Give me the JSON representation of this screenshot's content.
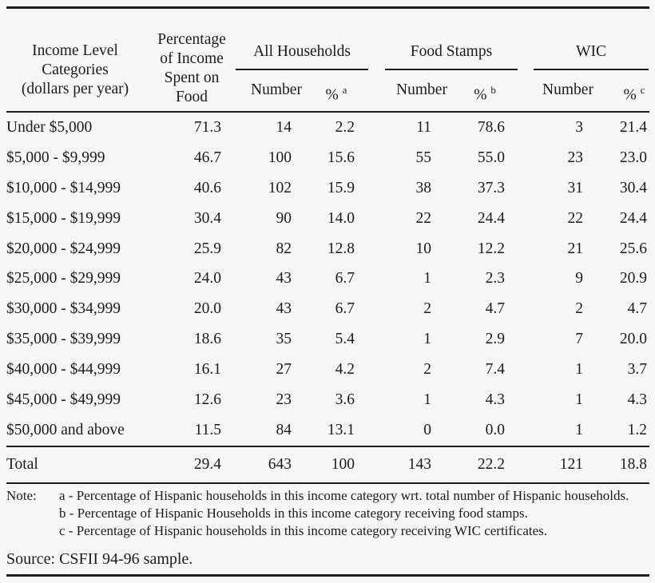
{
  "page": {
    "background": "#f6f6f4",
    "text_color": "#1b1b1b",
    "rule_color": "#1c1c1c"
  },
  "table": {
    "col1_header": [
      "Income Level",
      "Categories",
      "(dollars per year)"
    ],
    "col2_header": [
      "Percentage",
      "of Income",
      "Spent on",
      "Food"
    ],
    "groups": [
      {
        "label": "All Households",
        "sub": [
          {
            "label": "Number"
          },
          {
            "label": "%",
            "sup": "a"
          }
        ]
      },
      {
        "label": "Food Stamps",
        "sub": [
          {
            "label": "Number"
          },
          {
            "label": "%",
            "sup": "b"
          }
        ]
      },
      {
        "label": "WIC",
        "sub": [
          {
            "label": "Number"
          },
          {
            "label": "%",
            "sup": "c"
          }
        ]
      }
    ],
    "rows": [
      {
        "category": "Under $5,000",
        "pct_income_food": "71.3",
        "all_number": "14",
        "all_pct": "2.2",
        "fs_number": "11",
        "fs_pct": "78.6",
        "wic_number": "3",
        "wic_pct": "21.4"
      },
      {
        "category": "$5,000 - $9,999",
        "pct_income_food": "46.7",
        "all_number": "100",
        "all_pct": "15.6",
        "fs_number": "55",
        "fs_pct": "55.0",
        "wic_number": "23",
        "wic_pct": "23.0"
      },
      {
        "category": "$10,000 - $14,999",
        "pct_income_food": "40.6",
        "all_number": "102",
        "all_pct": "15.9",
        "fs_number": "38",
        "fs_pct": "37.3",
        "wic_number": "31",
        "wic_pct": "30.4"
      },
      {
        "category": "$15,000 - $19,999",
        "pct_income_food": "30.4",
        "all_number": "90",
        "all_pct": "14.0",
        "fs_number": "22",
        "fs_pct": "24.4",
        "wic_number": "22",
        "wic_pct": "24.4"
      },
      {
        "category": "$20,000 - $24,999",
        "pct_income_food": "25.9",
        "all_number": "82",
        "all_pct": "12.8",
        "fs_number": "10",
        "fs_pct": "12.2",
        "wic_number": "21",
        "wic_pct": "25.6"
      },
      {
        "category": "$25,000 - $29,999",
        "pct_income_food": "24.0",
        "all_number": "43",
        "all_pct": "6.7",
        "fs_number": "1",
        "fs_pct": "2.3",
        "wic_number": "9",
        "wic_pct": "20.9"
      },
      {
        "category": "$30,000 - $34,999",
        "pct_income_food": "20.0",
        "all_number": "43",
        "all_pct": "6.7",
        "fs_number": "2",
        "fs_pct": "4.7",
        "wic_number": "2",
        "wic_pct": "4.7"
      },
      {
        "category": "$35,000 - $39,999",
        "pct_income_food": "18.6",
        "all_number": "35",
        "all_pct": "5.4",
        "fs_number": "1",
        "fs_pct": "2.9",
        "wic_number": "7",
        "wic_pct": "20.0"
      },
      {
        "category": "$40,000 - $44,999",
        "pct_income_food": "16.1",
        "all_number": "27",
        "all_pct": "4.2",
        "fs_number": "2",
        "fs_pct": "7.4",
        "wic_number": "1",
        "wic_pct": "3.7"
      },
      {
        "category": "$45,000 - $49,999",
        "pct_income_food": "12.6",
        "all_number": "23",
        "all_pct": "3.6",
        "fs_number": "1",
        "fs_pct": "4.3",
        "wic_number": "1",
        "wic_pct": "4.3"
      },
      {
        "category": "$50,000 and above",
        "pct_income_food": "11.5",
        "all_number": "84",
        "all_pct": "13.1",
        "fs_number": "0",
        "fs_pct": "0.0",
        "wic_number": "1",
        "wic_pct": "1.2"
      }
    ],
    "total_row": {
      "category": "Total",
      "pct_income_food": "29.4",
      "all_number": "643",
      "all_pct": "100",
      "fs_number": "143",
      "fs_pct": "22.2",
      "wic_number": "121",
      "wic_pct": "18.8"
    }
  },
  "notes": {
    "label": "Note:",
    "items": [
      "a - Percentage of Hispanic households in this income category wrt. total number of Hispanic households.",
      "b - Percentage of Hispanic Households in this income category receiving food stamps.",
      "c - Percentage of Hispanic households in this income category receiving WIC certificates."
    ]
  },
  "source": "Source: CSFII 94-96 sample."
}
